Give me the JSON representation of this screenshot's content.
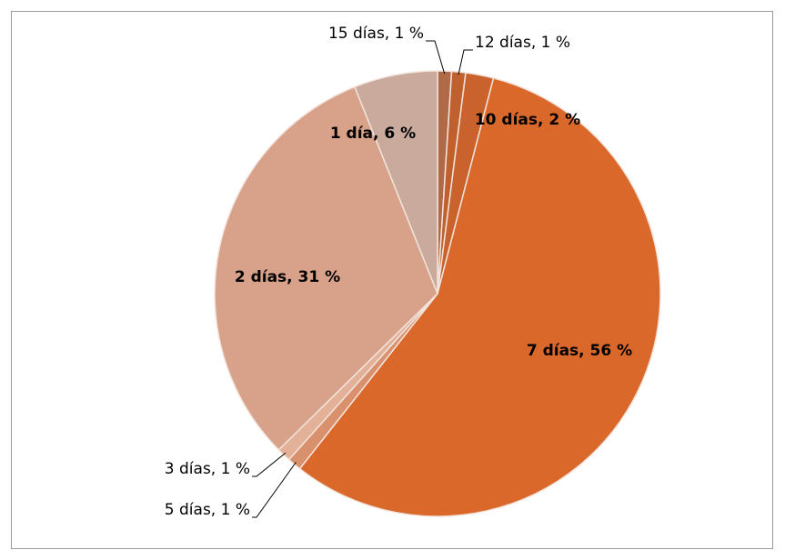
{
  "chart_data": {
    "type": "pie",
    "values": [
      1,
      1,
      2,
      56,
      1,
      1,
      31,
      6
    ],
    "value_labels": [
      "15 días, 1 %",
      "12 días, 1 %",
      "10 días, 2 %",
      "7 días, 56 %",
      "5 días, 1 %",
      "3 días, 1 %",
      "2 días, 31 %",
      "1 día, 6 %"
    ],
    "colors": [
      "#b06a48",
      "#c0602e",
      "#c9622c",
      "#d9682a",
      "#d9906c",
      "#e3b098",
      "#d8a189",
      "#c9aa9c"
    ]
  }
}
